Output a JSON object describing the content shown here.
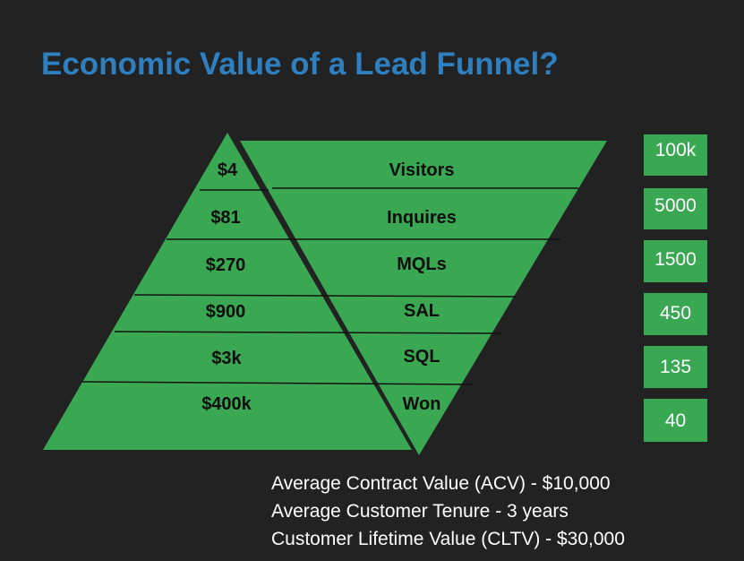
{
  "title": "Economic Value of a Lead Funnel?",
  "colors": {
    "background": "#222223",
    "title": "#2e7fbf",
    "funnel_fill": "#3aa853",
    "label_text": "#0d0d0d"
  },
  "stages": [
    {
      "value": "$4",
      "label": "Visitors",
      "count": "100k"
    },
    {
      "value": "$81",
      "label": "Inquires",
      "count": "5000"
    },
    {
      "value": "$270",
      "label": "MQLs",
      "count": "1500"
    },
    {
      "value": "$900",
      "label": "SAL",
      "count": "450"
    },
    {
      "value": "$3k",
      "label": "SQL",
      "count": "135"
    },
    {
      "value": "$400k",
      "label": "Won",
      "count": "40"
    }
  ],
  "notes": [
    "Average Contract Value (ACV) - $10,000",
    "Average Customer Tenure - 3 years",
    "Customer Lifetime Value (CLTV) - $30,000"
  ]
}
